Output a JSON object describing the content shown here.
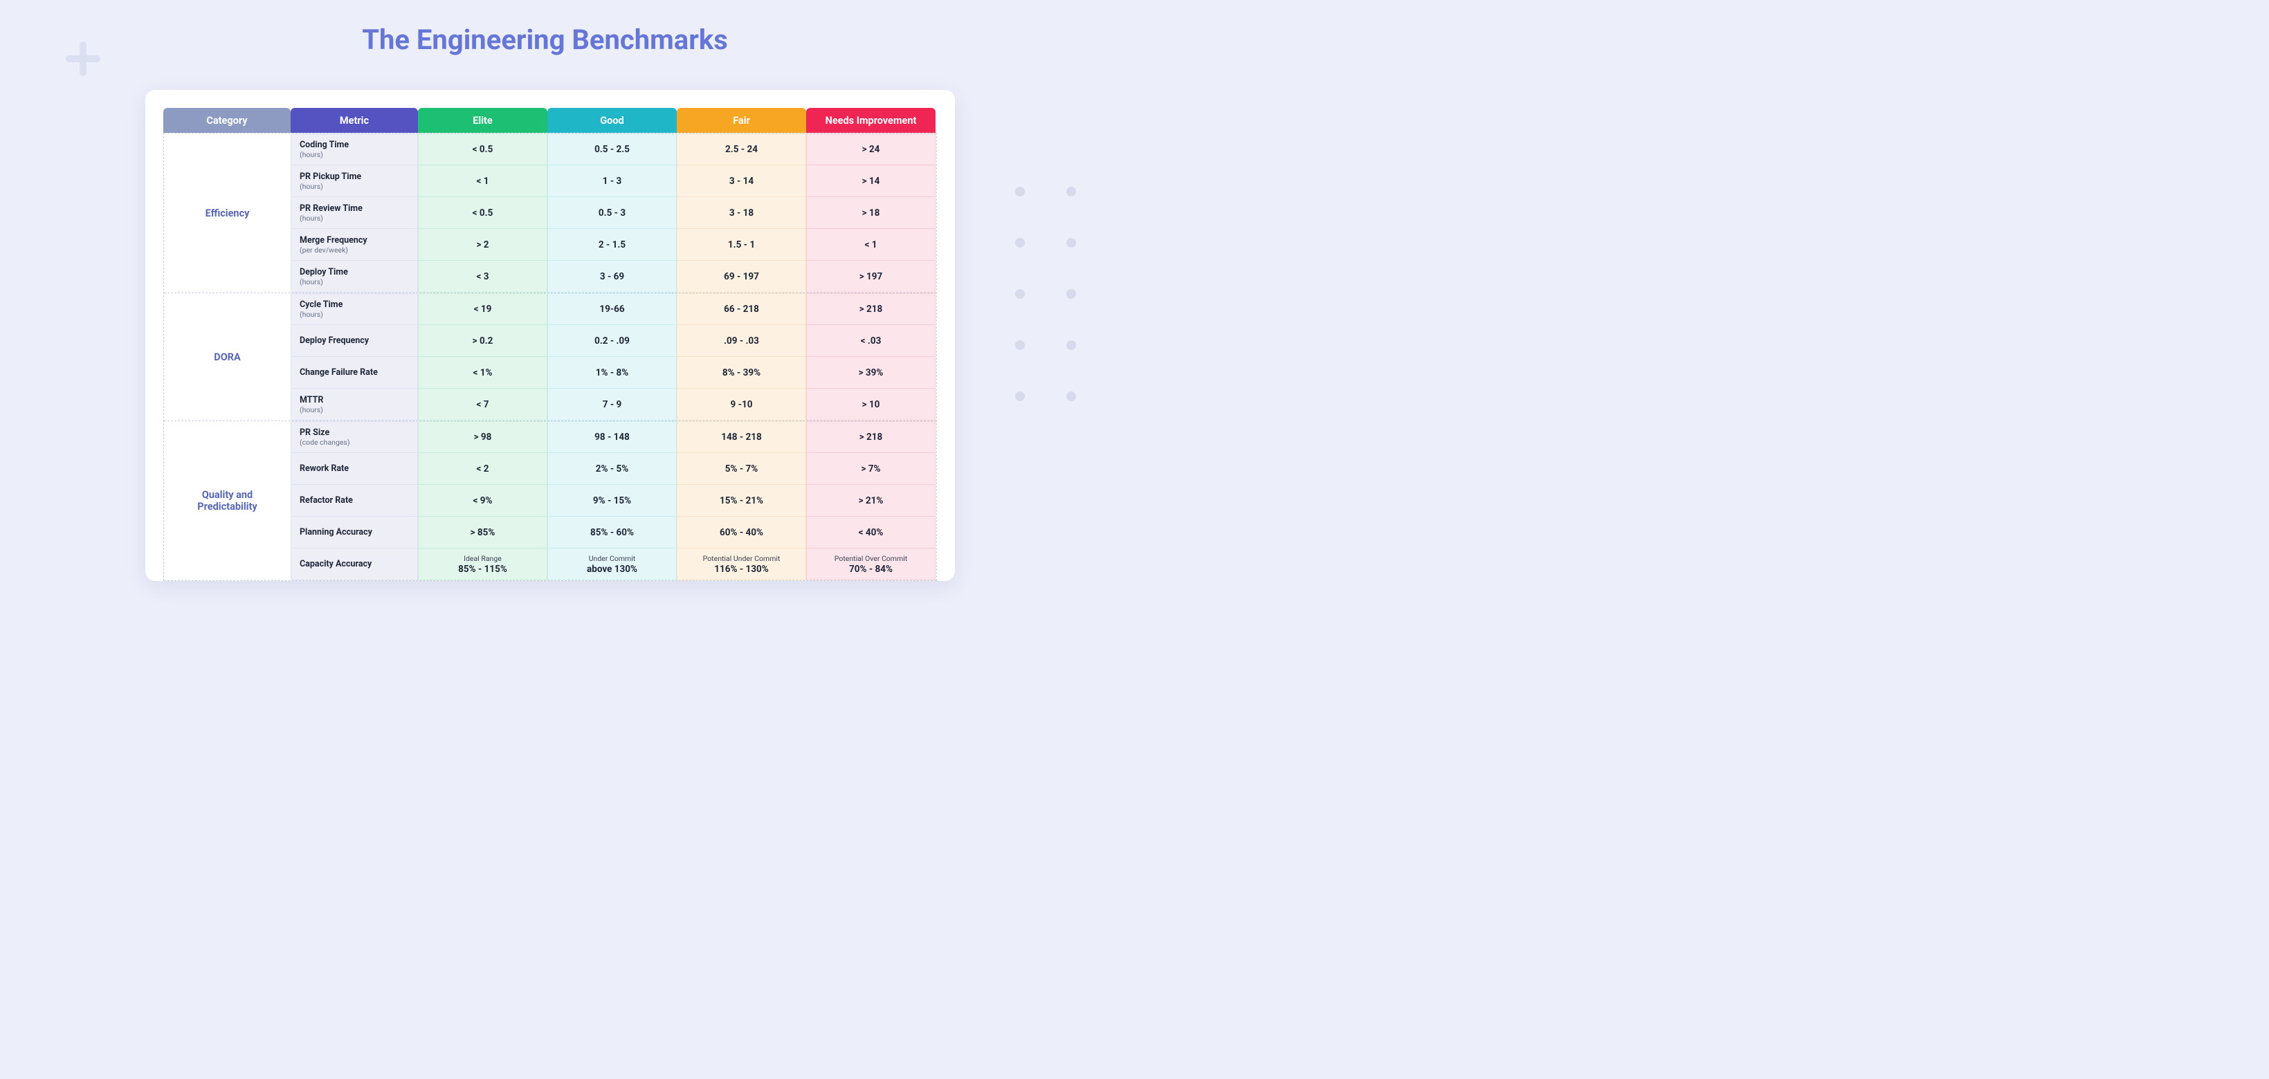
{
  "title": "The Engineering Benchmarks",
  "header": {
    "columns": [
      {
        "key": "category",
        "label": "Category",
        "bg": "#8d9bc2"
      },
      {
        "key": "metric",
        "label": "Metric",
        "bg": "#5552c2"
      },
      {
        "key": "elite",
        "label": "Elite",
        "bg": "#1dbf73",
        "tint": "#e3f6eb",
        "border": "#c9ecd8"
      },
      {
        "key": "good",
        "label": "Good",
        "bg": "#1fb6c8",
        "tint": "#e4f6f8",
        "border": "#c9ecee"
      },
      {
        "key": "fair",
        "label": "Fair",
        "bg": "#f6a623",
        "tint": "#fdf2e1",
        "border": "#f5e5c6"
      },
      {
        "key": "needs",
        "label": "Needs Improvement",
        "bg": "#ef2654",
        "tint": "#fce6eb",
        "border": "#f5ccd5"
      }
    ]
  },
  "categories": [
    {
      "name": "Efficiency",
      "rows": [
        {
          "metric": "Coding Time",
          "unit": "(hours)",
          "elite": "< 0.5",
          "good": "0.5 - 2.5",
          "fair": "2.5 - 24",
          "needs": "> 24"
        },
        {
          "metric": "PR Pickup Time",
          "unit": "(hours)",
          "elite": "< 1",
          "good": "1 - 3",
          "fair": "3 - 14",
          "needs": "> 14"
        },
        {
          "metric": "PR Review Time",
          "unit": "(hours)",
          "elite": "< 0.5",
          "good": "0.5 - 3",
          "fair": "3 - 18",
          "needs": "> 18"
        },
        {
          "metric": "Merge Frequency",
          "unit": "(per dev/week)",
          "elite": "> 2",
          "good": "2 - 1.5",
          "fair": "1.5 - 1",
          "needs": "< 1"
        },
        {
          "metric": "Deploy Time",
          "unit": "(hours)",
          "elite": "< 3",
          "good": "3 - 69",
          "fair": "69 - 197",
          "needs": "> 197"
        }
      ]
    },
    {
      "name": "DORA",
      "rows": [
        {
          "metric": "Cycle Time",
          "unit": "(hours)",
          "elite": "< 19",
          "good": "19-66",
          "fair": "66 - 218",
          "needs": "> 218"
        },
        {
          "metric": "Deploy Frequency",
          "unit": "",
          "elite": "> 0.2",
          "good": "0.2 - .09",
          "fair": ".09 - .03",
          "needs": "< .03"
        },
        {
          "metric": "Change Failure Rate",
          "unit": "",
          "elite": "< 1%",
          "good": "1% - 8%",
          "fair": "8% - 39%",
          "needs": "> 39%"
        },
        {
          "metric": "MTTR",
          "unit": "(hours)",
          "elite": "< 7",
          "good": "7 - 9",
          "fair": "9 -10",
          "needs": "> 10"
        }
      ]
    },
    {
      "name": "Quality and Predictability",
      "rows": [
        {
          "metric": "PR Size",
          "unit": "(code changes)",
          "elite": "> 98",
          "good": "98 - 148",
          "fair": "148 - 218",
          "needs": "> 218"
        },
        {
          "metric": "Rework Rate",
          "unit": "",
          "elite": "< 2",
          "good": "2% - 5%",
          "fair": "5% - 7%",
          "needs": "> 7%"
        },
        {
          "metric": "Refactor Rate",
          "unit": "",
          "elite": "< 9%",
          "good": "9% - 15%",
          "fair": "15% - 21%",
          "needs": "> 21%"
        },
        {
          "metric": "Planning Accuracy",
          "unit": "",
          "elite": "> 85%",
          "good": "85% - 60%",
          "fair": "60% - 40%",
          "needs": "< 40%"
        },
        {
          "metric": "Capacity Accuracy",
          "unit": "",
          "elite_super": "Ideal Range",
          "elite": "85% - 115%",
          "good_super": "Under Commit",
          "good": "above 130%",
          "fair_super": "Potential Under Commit",
          "fair": "116% - 130%",
          "needs_super": "Potential Over Commit",
          "needs": "70% - 84%"
        }
      ]
    }
  ]
}
